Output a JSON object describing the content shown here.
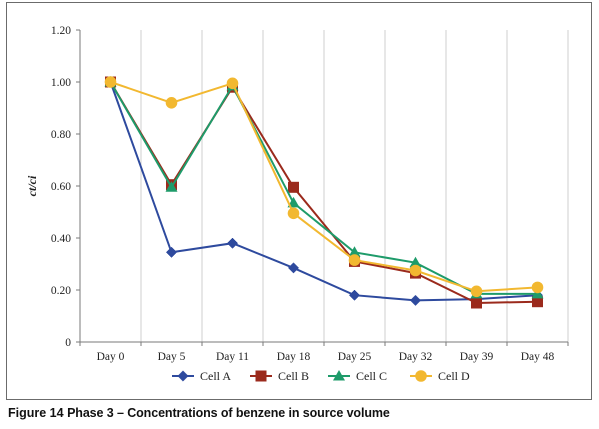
{
  "chart_data": {
    "type": "line",
    "categories": [
      "Day 0",
      "Day 5",
      "Day 11",
      "Day 18",
      "Day 25",
      "Day 32",
      "Day 39",
      "Day 48"
    ],
    "ylabel": "ct/ci",
    "xlabel": "",
    "ylim": [
      0,
      1.2
    ],
    "yticks": [
      "0",
      "0.20",
      "0.40",
      "0.60",
      "0.80",
      "1.00",
      "1.20"
    ],
    "grid": "vertical",
    "legend_position": "bottom",
    "series": [
      {
        "name": "Cell A",
        "color": "#2e4a9e",
        "marker": "diamond",
        "values": [
          1.0,
          0.345,
          0.38,
          0.285,
          0.18,
          0.16,
          0.165,
          0.18
        ]
      },
      {
        "name": "Cell B",
        "color": "#9b2a1c",
        "marker": "square",
        "values": [
          1.0,
          0.605,
          0.98,
          0.595,
          0.31,
          0.265,
          0.15,
          0.155
        ]
      },
      {
        "name": "Cell C",
        "color": "#1e9b6a",
        "marker": "triangle",
        "values": [
          1.0,
          0.595,
          0.985,
          0.535,
          0.345,
          0.305,
          0.185,
          0.185
        ]
      },
      {
        "name": "Cell D",
        "color": "#f2b830",
        "marker": "circle",
        "values": [
          1.0,
          0.92,
          0.995,
          0.495,
          0.315,
          0.275,
          0.195,
          0.21
        ]
      }
    ]
  },
  "caption": {
    "label": "Figure 14",
    "text": "Phase 3 – Concentrations of benzene in source volume"
  }
}
